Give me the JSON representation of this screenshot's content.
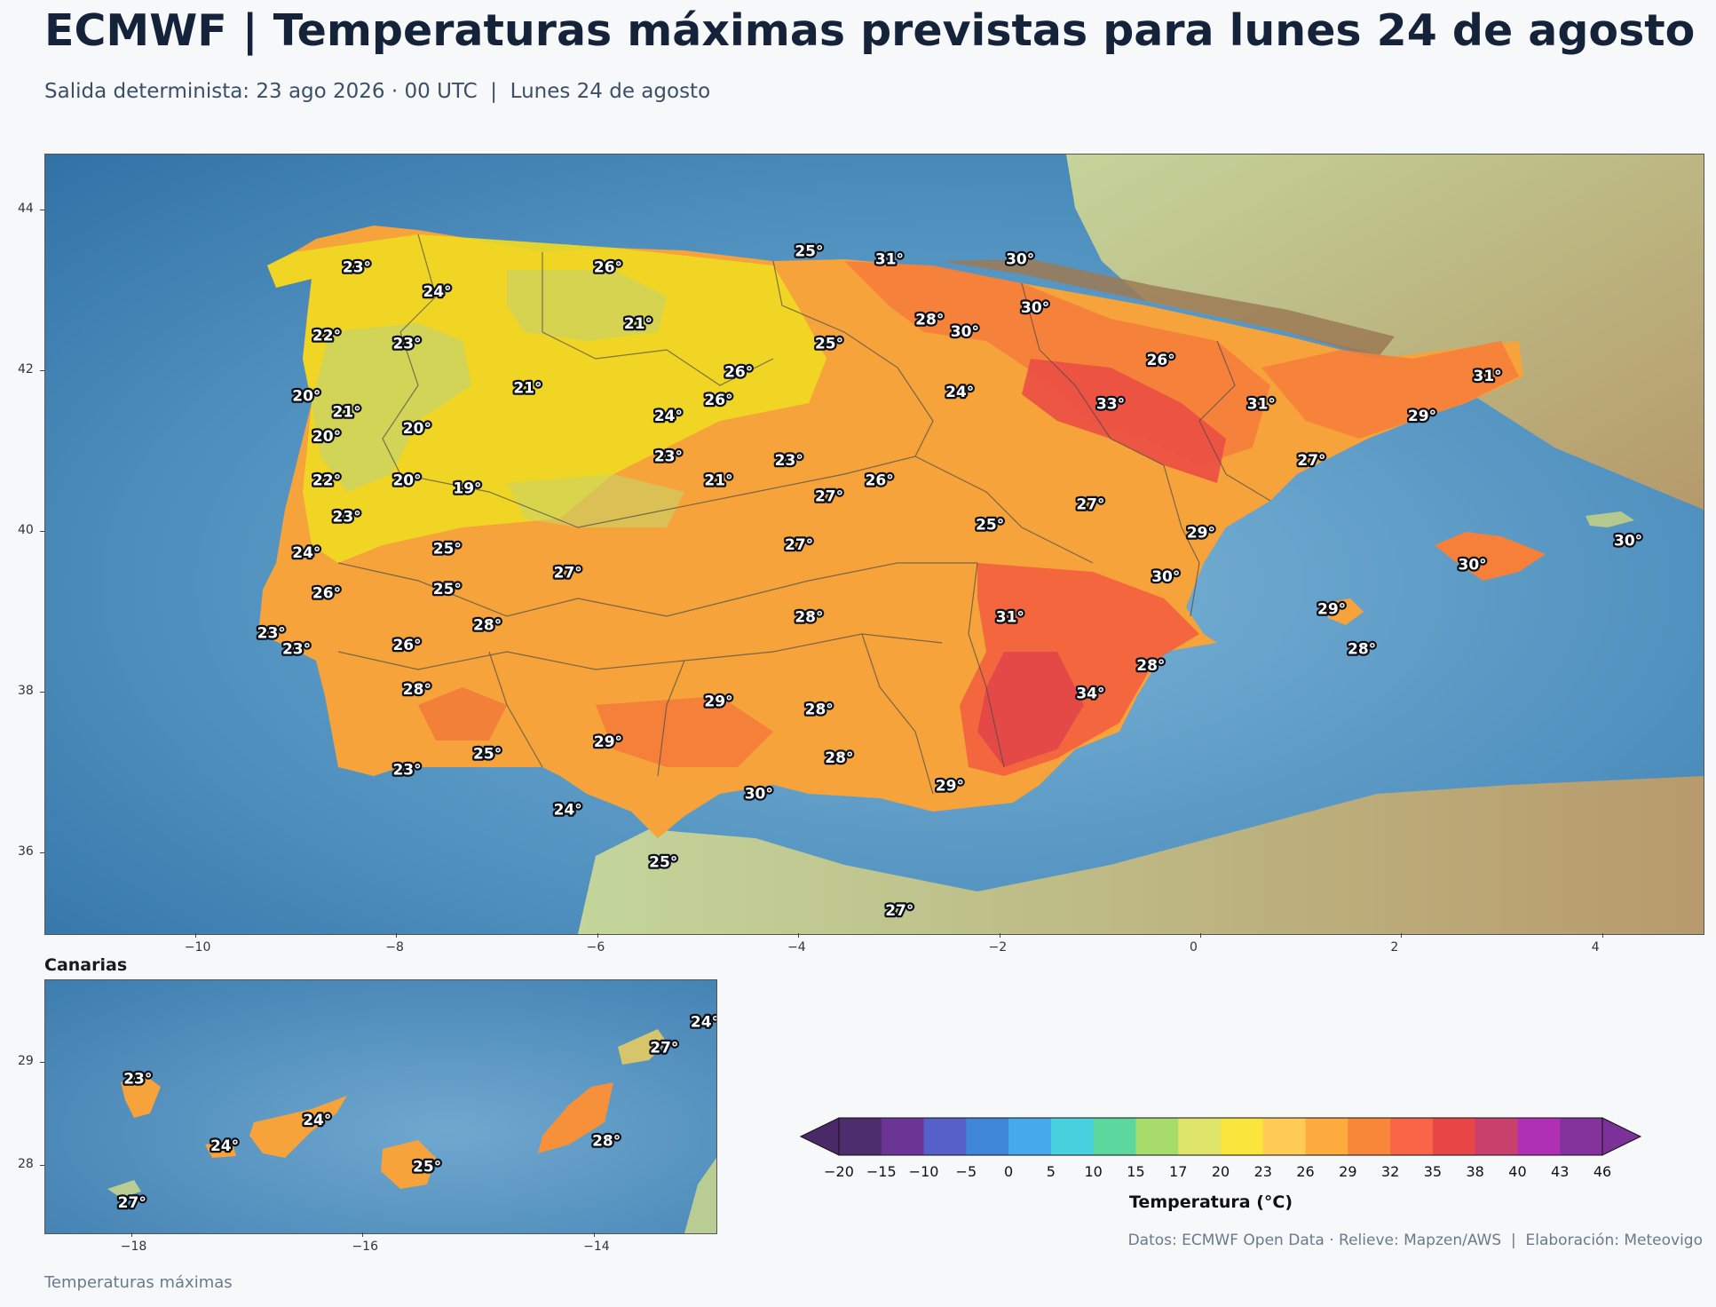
{
  "header": {
    "title": "ECMWF | Temperaturas máximas previstas para lunes 24 de agosto",
    "subtitle": "Salida determinista: 23 ago 2026 · 00 UTC  |  Lunes 24 de agosto"
  },
  "main_map": {
    "lon_range": [
      -11.5,
      5.0
    ],
    "lat_range": [
      35.0,
      44.7
    ],
    "x_ticks": [
      "−10",
      "−8",
      "−6",
      "−4",
      "−2",
      "0",
      "2",
      "4"
    ],
    "y_ticks": [
      "36",
      "38",
      "40",
      "42",
      "44"
    ],
    "labels": [
      {
        "text": "23°",
        "lon": -8.4,
        "lat": 43.3
      },
      {
        "text": "26°",
        "lon": -5.9,
        "lat": 43.3
      },
      {
        "text": "25°",
        "lon": -3.9,
        "lat": 43.5
      },
      {
        "text": "31°",
        "lon": -3.1,
        "lat": 43.4
      },
      {
        "text": "30°",
        "lon": -1.8,
        "lat": 43.4
      },
      {
        "text": "24°",
        "lon": -7.6,
        "lat": 43.0
      },
      {
        "text": "21°",
        "lon": -5.6,
        "lat": 42.6
      },
      {
        "text": "30°",
        "lon": -1.65,
        "lat": 42.8
      },
      {
        "text": "28°",
        "lon": -2.7,
        "lat": 42.65
      },
      {
        "text": "30°",
        "lon": -2.35,
        "lat": 42.5
      },
      {
        "text": "22°",
        "lon": -8.7,
        "lat": 42.45
      },
      {
        "text": "23°",
        "lon": -7.9,
        "lat": 42.35
      },
      {
        "text": "25°",
        "lon": -3.7,
        "lat": 42.35
      },
      {
        "text": "26°",
        "lon": -0.4,
        "lat": 42.15
      },
      {
        "text": "26°",
        "lon": -4.6,
        "lat": 42.0
      },
      {
        "text": "31°",
        "lon": 2.85,
        "lat": 41.95
      },
      {
        "text": "21°",
        "lon": -6.7,
        "lat": 41.8
      },
      {
        "text": "24°",
        "lon": -2.4,
        "lat": 41.75
      },
      {
        "text": "20°",
        "lon": -8.9,
        "lat": 41.7
      },
      {
        "text": "33°",
        "lon": -0.9,
        "lat": 41.6
      },
      {
        "text": "31°",
        "lon": 0.6,
        "lat": 41.6
      },
      {
        "text": "26°",
        "lon": -4.8,
        "lat": 41.65
      },
      {
        "text": "21°",
        "lon": -8.5,
        "lat": 41.5
      },
      {
        "text": "24°",
        "lon": -5.3,
        "lat": 41.45
      },
      {
        "text": "29°",
        "lon": 2.2,
        "lat": 41.45
      },
      {
        "text": "20°",
        "lon": -7.8,
        "lat": 41.3
      },
      {
        "text": "20°",
        "lon": -8.7,
        "lat": 41.2
      },
      {
        "text": "23°",
        "lon": -5.3,
        "lat": 40.95
      },
      {
        "text": "23°",
        "lon": -4.1,
        "lat": 40.9
      },
      {
        "text": "27°",
        "lon": 1.1,
        "lat": 40.9
      },
      {
        "text": "22°",
        "lon": -8.7,
        "lat": 40.65
      },
      {
        "text": "20°",
        "lon": -7.9,
        "lat": 40.65
      },
      {
        "text": "21°",
        "lon": -4.8,
        "lat": 40.65
      },
      {
        "text": "26°",
        "lon": -3.2,
        "lat": 40.65
      },
      {
        "text": "19°",
        "lon": -7.3,
        "lat": 40.55
      },
      {
        "text": "27°",
        "lon": -3.7,
        "lat": 40.45
      },
      {
        "text": "27°",
        "lon": -1.1,
        "lat": 40.35
      },
      {
        "text": "23°",
        "lon": -8.5,
        "lat": 40.2
      },
      {
        "text": "25°",
        "lon": -2.1,
        "lat": 40.1
      },
      {
        "text": "29°",
        "lon": 0.0,
        "lat": 40.0
      },
      {
        "text": "30°",
        "lon": 4.25,
        "lat": 39.9
      },
      {
        "text": "27°",
        "lon": -4.0,
        "lat": 39.85
      },
      {
        "text": "25°",
        "lon": -7.5,
        "lat": 39.8
      },
      {
        "text": "24°",
        "lon": -8.9,
        "lat": 39.75
      },
      {
        "text": "30°",
        "lon": 2.7,
        "lat": 39.6
      },
      {
        "text": "27°",
        "lon": -6.3,
        "lat": 39.5
      },
      {
        "text": "30°",
        "lon": -0.35,
        "lat": 39.45
      },
      {
        "text": "25°",
        "lon": -7.5,
        "lat": 39.3
      },
      {
        "text": "26°",
        "lon": -8.7,
        "lat": 39.25
      },
      {
        "text": "29°",
        "lon": 1.3,
        "lat": 39.05
      },
      {
        "text": "31°",
        "lon": -1.9,
        "lat": 38.95
      },
      {
        "text": "28°",
        "lon": -3.9,
        "lat": 38.95
      },
      {
        "text": "28°",
        "lon": -7.1,
        "lat": 38.85
      },
      {
        "text": "23°",
        "lon": -9.25,
        "lat": 38.75
      },
      {
        "text": "23°",
        "lon": -9.0,
        "lat": 38.55
      },
      {
        "text": "26°",
        "lon": -7.9,
        "lat": 38.6
      },
      {
        "text": "28°",
        "lon": 1.6,
        "lat": 38.55
      },
      {
        "text": "28°",
        "lon": -0.5,
        "lat": 38.35
      },
      {
        "text": "28°",
        "lon": -7.8,
        "lat": 38.05
      },
      {
        "text": "34°",
        "lon": -1.1,
        "lat": 38.0
      },
      {
        "text": "29°",
        "lon": -4.8,
        "lat": 37.9
      },
      {
        "text": "28°",
        "lon": -3.8,
        "lat": 37.8
      },
      {
        "text": "29°",
        "lon": -5.9,
        "lat": 37.4
      },
      {
        "text": "25°",
        "lon": -7.1,
        "lat": 37.25
      },
      {
        "text": "28°",
        "lon": -3.6,
        "lat": 37.2
      },
      {
        "text": "23°",
        "lon": -7.9,
        "lat": 37.05
      },
      {
        "text": "29°",
        "lon": -2.5,
        "lat": 36.85
      },
      {
        "text": "30°",
        "lon": -4.4,
        "lat": 36.75
      },
      {
        "text": "24°",
        "lon": -6.3,
        "lat": 36.55
      },
      {
        "text": "25°",
        "lon": -5.35,
        "lat": 35.9
      },
      {
        "text": "27°",
        "lon": -3.0,
        "lat": 35.3
      }
    ]
  },
  "canarias": {
    "title": "Canarias",
    "lon_range": [
      -18.75,
      -12.95
    ],
    "lat_range": [
      27.35,
      29.8
    ],
    "x_ticks": [
      "−18",
      "−16",
      "−14"
    ],
    "y_ticks": [
      "28",
      "29"
    ],
    "labels": [
      {
        "text": "23°",
        "lon": -17.95,
        "lat": 28.85
      },
      {
        "text": "24°",
        "lon": -17.2,
        "lat": 28.2
      },
      {
        "text": "24°",
        "lon": -16.4,
        "lat": 28.45
      },
      {
        "text": "25°",
        "lon": -15.45,
        "lat": 28.0
      },
      {
        "text": "28°",
        "lon": -13.9,
        "lat": 28.25
      },
      {
        "text": "27°",
        "lon": -13.4,
        "lat": 29.15
      },
      {
        "text": "24°",
        "lon": -13.05,
        "lat": 29.4
      },
      {
        "text": "27°",
        "lon": -18.0,
        "lat": 27.65
      }
    ]
  },
  "colorbar": {
    "label": "Temperatura (°C)",
    "ticks": [
      "−20",
      "−15",
      "−10",
      "−5",
      "0",
      "5",
      "10",
      "15",
      "17",
      "20",
      "23",
      "26",
      "29",
      "32",
      "35",
      "38",
      "40",
      "43",
      "46"
    ],
    "colors": [
      "#4e2d6e",
      "#6b3596",
      "#5560c8",
      "#3f86d9",
      "#45aaeb",
      "#48d0de",
      "#5cd89e",
      "#a7dc6c",
      "#dfe56a",
      "#f9e53c",
      "#ffca55",
      "#fdaa3f",
      "#f9873a",
      "#f86647",
      "#e94648",
      "#c9406d",
      "#b030b5",
      "#84329c"
    ],
    "under_color": "#4a2a66",
    "over_color": "#7b3197"
  },
  "credits": "Datos: ECMWF Open Data · Relieve: Mapzen/AWS  |  Elaboración: Meteovigo",
  "footer_note": "Temperaturas máximas"
}
